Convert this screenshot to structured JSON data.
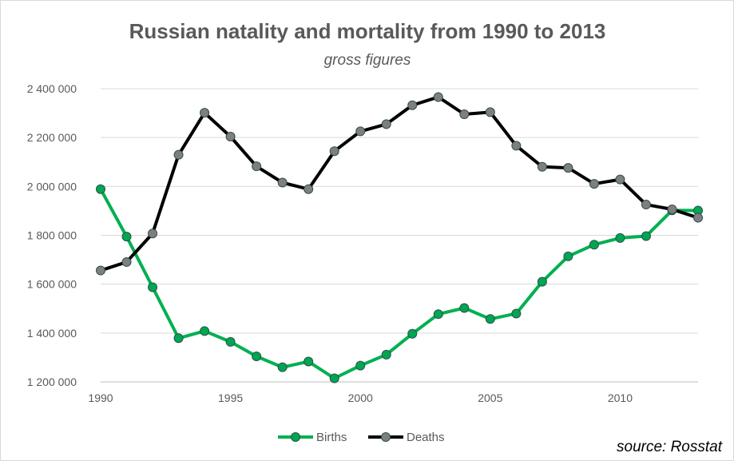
{
  "chart_data": {
    "type": "line",
    "title": "Russian natality and mortality from 1990 to 2013",
    "subtitle": "gross figures",
    "x": [
      1990,
      1991,
      1992,
      1993,
      1994,
      1995,
      1996,
      1997,
      1998,
      1999,
      2000,
      2001,
      2002,
      2003,
      2004,
      2005,
      2006,
      2007,
      2008,
      2009,
      2010,
      2011,
      2012,
      2013
    ],
    "series": [
      {
        "name": "Births",
        "color": "#00b050",
        "marker_color": "#00a651",
        "values": [
          1988858,
          1794626,
          1587644,
          1378983,
          1408159,
          1363806,
          1304638,
          1259943,
          1283292,
          1214689,
          1266800,
          1311604,
          1396967,
          1477301,
          1502477,
          1457376,
          1479637,
          1610122,
          1713947,
          1761687,
          1788948,
          1796629,
          1902084,
          1901182
        ]
      },
      {
        "name": "Deaths",
        "color": "#000000",
        "marker_color": "#7f7f7f",
        "values": [
          1655993,
          1690657,
          1807441,
          2129339,
          2301366,
          2203811,
          2082249,
          2015779,
          1988744,
          2144316,
          2225332,
          2254856,
          2332272,
          2365826,
          2295402,
          2303935,
          2166703,
          2080445,
          2075954,
          2010543,
          2028516,
          1925720,
          1906335,
          1871809
        ]
      }
    ],
    "ylim": [
      1200000,
      2400000
    ],
    "y_ticks": [
      "1 200 000",
      "1 400 000",
      "1 600 000",
      "1 800 000",
      "2 000 000",
      "2 200 000",
      "2 400 000"
    ],
    "y_tick_values": [
      1200000,
      1400000,
      1600000,
      1800000,
      2000000,
      2200000,
      2400000
    ],
    "x_ticks": [
      "1990",
      "1995",
      "2000",
      "2005",
      "2010"
    ],
    "x_tick_values": [
      1990,
      1995,
      2000,
      2005,
      2010
    ],
    "xlim": [
      1990,
      2013
    ],
    "grid": true,
    "legend_position": "bottom",
    "legend": [
      "Births",
      "Deaths"
    ]
  },
  "source_note": "source: Rosstat"
}
